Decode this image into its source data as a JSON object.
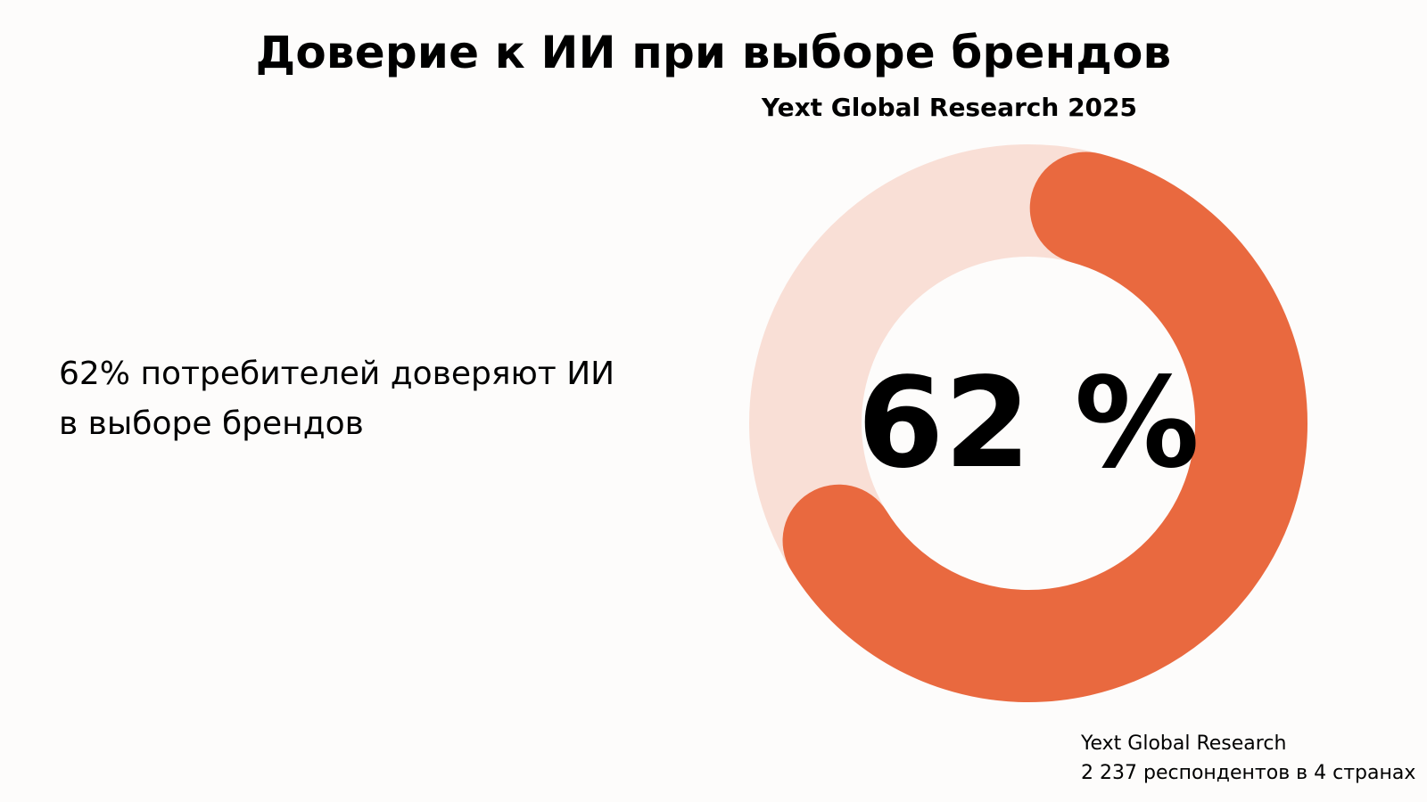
{
  "header": {
    "title": "Доверие к ИИ при выборе брендов",
    "subtitle": "Yext Global Research 2025"
  },
  "statement": {
    "line1": "62% потребителей доверяют ИИ",
    "line2": "в выборе брендов"
  },
  "source": {
    "line1": "Yext Global Research",
    "line2": "2 237 респондентов в 4 странах"
  },
  "chart_data": {
    "type": "pie",
    "style": "donut",
    "title": "Доверие к ИИ при выборе брендов",
    "center_label": "62 %",
    "slices": [
      {
        "value": 62,
        "color": "#E9693F"
      },
      {
        "value": 38,
        "color": "#F9DFD6"
      }
    ]
  }
}
